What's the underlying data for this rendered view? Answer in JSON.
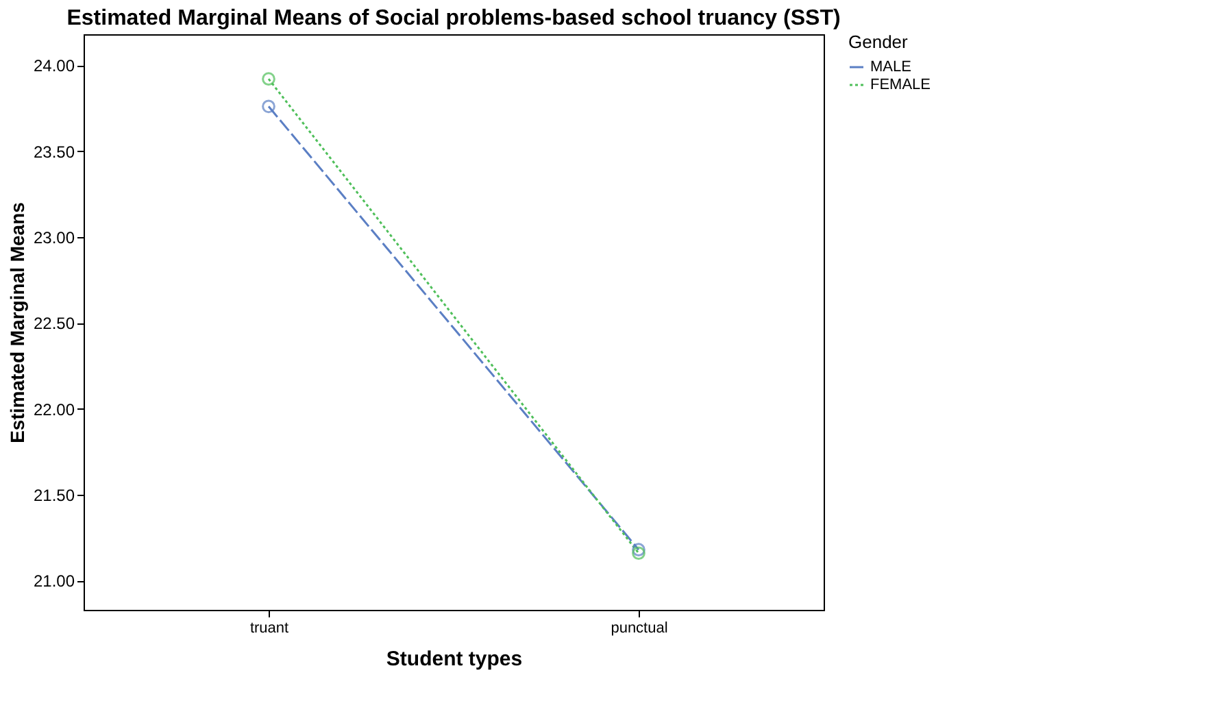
{
  "chart_data": {
    "type": "line",
    "title": "Estimated Marginal Means of Social problems-based   school truancy (SST)",
    "xlabel": "Student types",
    "ylabel": "Estimated Marginal Means",
    "legend_title": "Gender",
    "categories": [
      "truant",
      "punctual"
    ],
    "series": [
      {
        "name": "MALE",
        "color": "#5b7fc4",
        "line_style": "dashed",
        "values": [
          23.76,
          21.18
        ]
      },
      {
        "name": "FEMALE",
        "color": "#4fbf5a",
        "line_style": "dotted",
        "values": [
          23.92,
          21.16
        ]
      }
    ],
    "ylim": [
      20.83,
      24.18
    ],
    "yticks": [
      {
        "value": 21,
        "label": "21.00"
      },
      {
        "value": 21.5,
        "label": "21.50"
      },
      {
        "value": 22,
        "label": "22.00"
      },
      {
        "value": 22.5,
        "label": "22.50"
      },
      {
        "value": 23,
        "label": "23.00"
      },
      {
        "value": 23.5,
        "label": "23.50"
      },
      {
        "value": 24,
        "label": "24.00"
      }
    ],
    "grid": false,
    "legend": "top right",
    "marker": "circle"
  }
}
